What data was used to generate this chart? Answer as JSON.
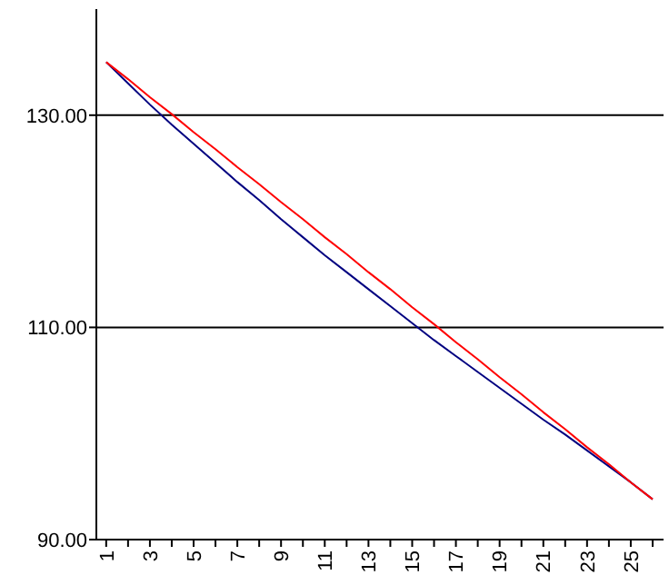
{
  "chart_data": {
    "type": "line",
    "categories": [
      "1",
      null,
      "3",
      null,
      "5",
      null,
      "7",
      null,
      "9",
      null,
      "11",
      null,
      "13",
      null,
      "15",
      null,
      "17",
      null,
      "19",
      null,
      "21",
      null,
      "23",
      null,
      "25",
      null
    ],
    "series": [
      {
        "color": "#ff0000",
        "values": [
          135,
          133.4,
          131.7,
          130.1,
          128.4,
          126.8,
          125.1,
          123.5,
          121.8,
          120.2,
          118.5,
          116.9,
          115.2,
          113.6,
          111.9,
          110.3,
          108.6,
          107,
          105.3,
          103.7,
          102,
          100.4,
          98.7,
          97.1,
          95.4,
          93.8
        ]
      },
      {
        "color": "#000080",
        "values": [
          135,
          133,
          131,
          129.1,
          127.3,
          125.5,
          123.7,
          122,
          120.2,
          118.5,
          116.8,
          115.2,
          113.6,
          112,
          110.4,
          108.8,
          107.3,
          105.8,
          104.3,
          102.8,
          101.3,
          99.9,
          98.4,
          96.9,
          95.4,
          93.8
        ]
      }
    ],
    "ylim": [
      90,
      140
    ],
    "yticks": [
      {
        "value": 90,
        "label": "90.00"
      },
      {
        "value": 110,
        "label": "110.00"
      },
      {
        "value": 130,
        "label": "130.00"
      }
    ],
    "grid": "y",
    "marker": "none",
    "line_style": "solid"
  }
}
